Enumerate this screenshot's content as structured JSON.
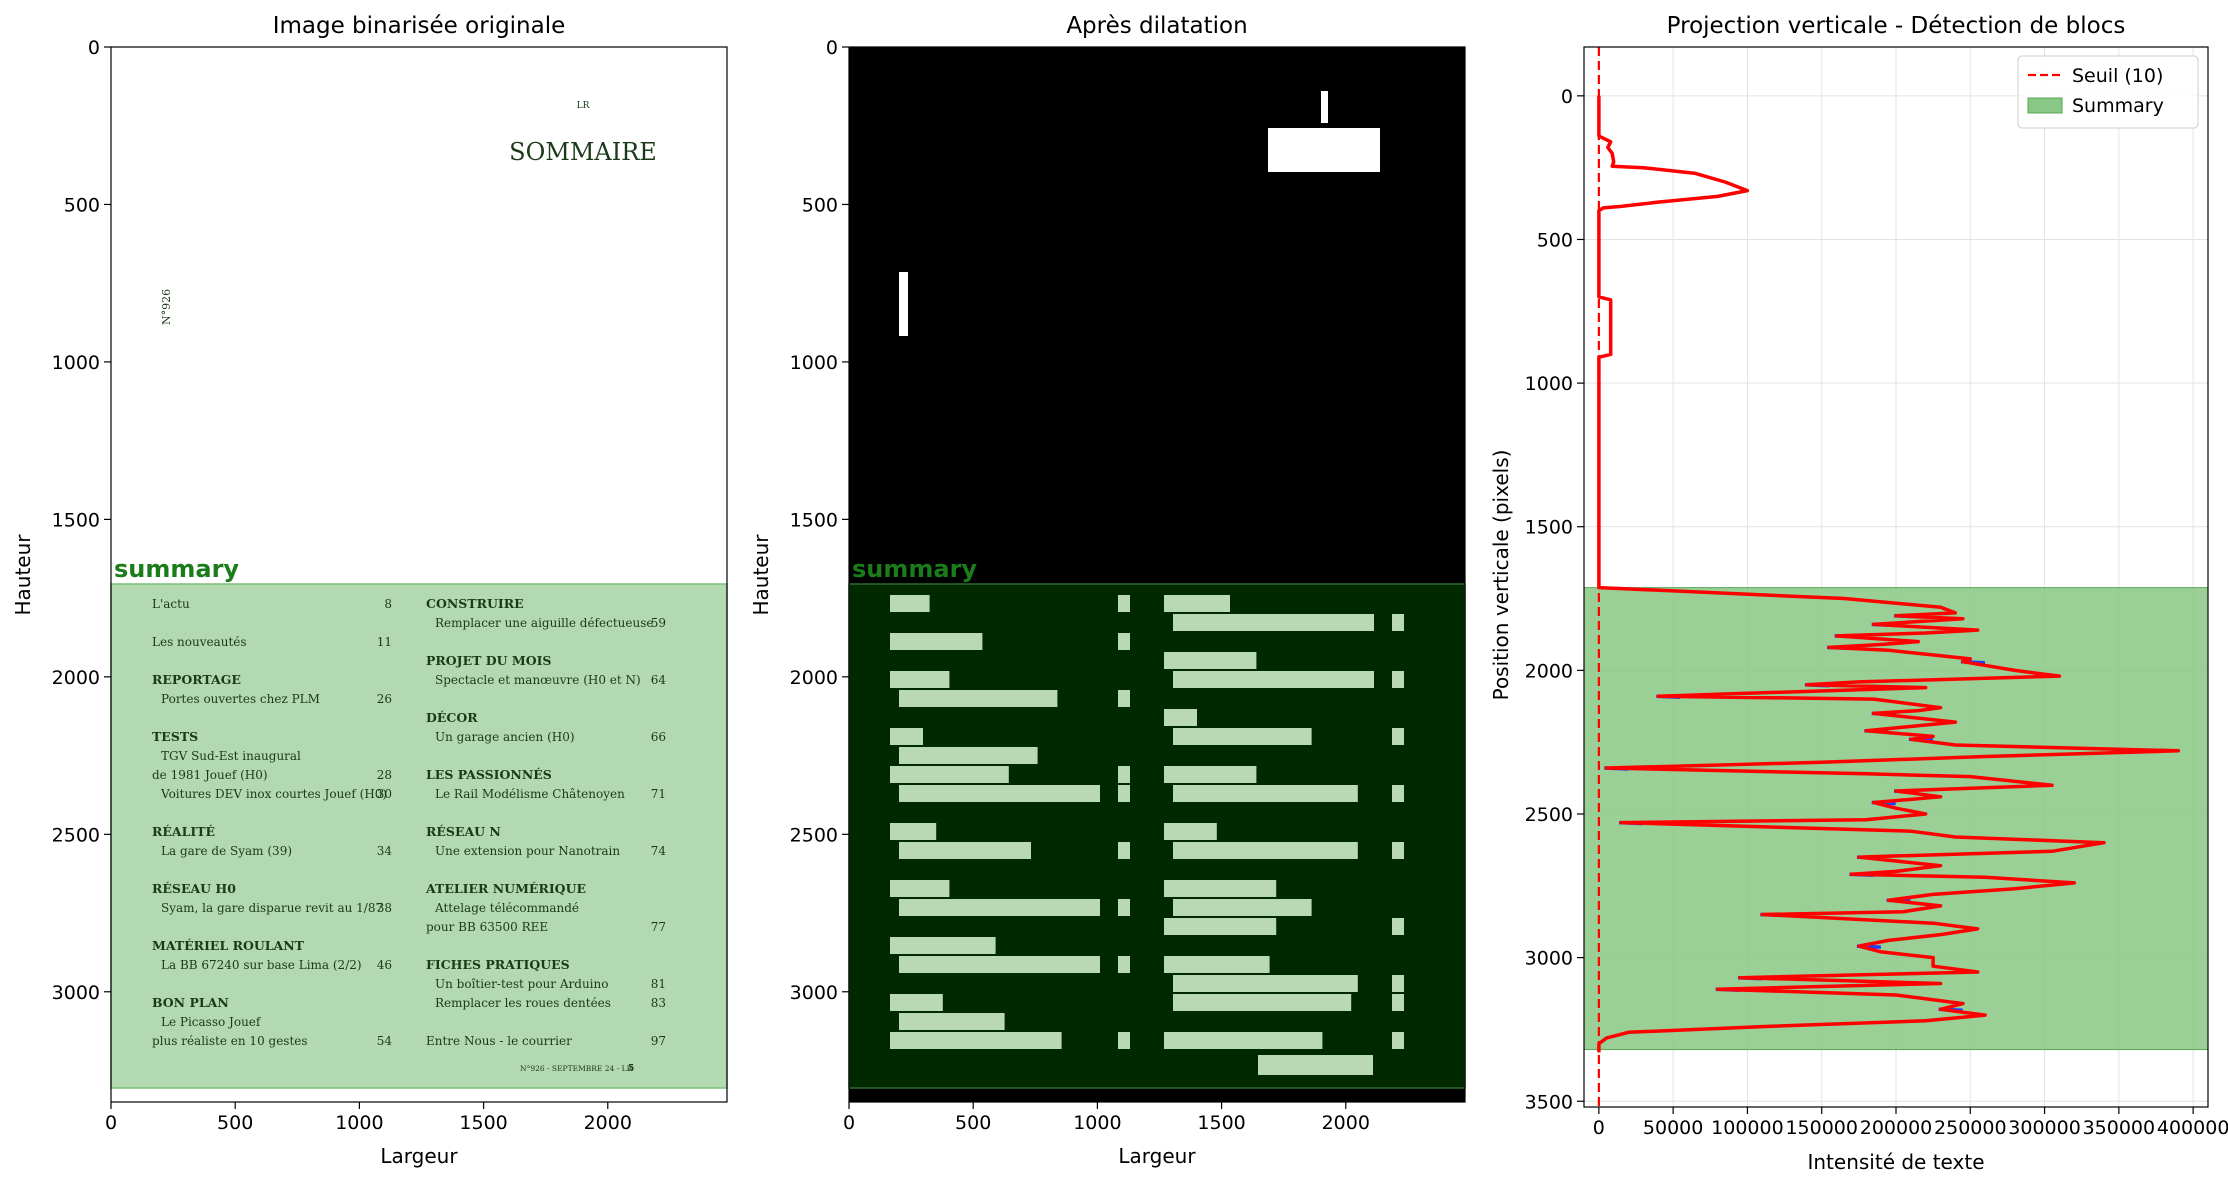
{
  "panels": [
    {
      "title": "Image binarisée originale",
      "xlabel": "Largeur",
      "ylabel": "Hauteur",
      "xticks": [
        "0",
        "500",
        "1000",
        "1500",
        "2000"
      ],
      "yticks": [
        "0",
        "500",
        "1000",
        "1500",
        "2000",
        "2500",
        "3000"
      ],
      "region_label": "summary",
      "page_text": {
        "header_small": "LR",
        "header": "SOMMAIRE",
        "issue_vertical": "N°926",
        "footer": "N°926 - SEPTEMBRE 24 - LR",
        "footer_page": "5",
        "left_col": [
          {
            "text": "L'actu",
            "num": "8",
            "bold": false,
            "indent": false
          },
          {
            "text": "Les nouveautés",
            "num": "11",
            "bold": false,
            "indent": false
          },
          {
            "text": "REPORTAGE",
            "num": "",
            "bold": true,
            "indent": false
          },
          {
            "text": "Portes ouvertes chez PLM",
            "num": "26",
            "bold": false,
            "indent": true
          },
          {
            "text": "TESTS",
            "num": "",
            "bold": true,
            "indent": false
          },
          {
            "text": "TGV Sud-Est inaugural",
            "num": "",
            "bold": false,
            "indent": true
          },
          {
            "text": "de 1981 Jouef (H0)",
            "num": "28",
            "bold": false,
            "indent": false
          },
          {
            "text": "Voitures DEV inox courtes Jouef (H0)",
            "num": "30",
            "bold": false,
            "indent": true
          },
          {
            "text": "RÉALITÉ",
            "num": "",
            "bold": true,
            "indent": false
          },
          {
            "text": "La gare de Syam (39)",
            "num": "34",
            "bold": false,
            "indent": true
          },
          {
            "text": "RÉSEAU H0",
            "num": "",
            "bold": true,
            "indent": false
          },
          {
            "text": "Syam, la gare disparue revit au 1/87",
            "num": "38",
            "bold": false,
            "indent": true
          },
          {
            "text": "MATÉRIEL ROULANT",
            "num": "",
            "bold": true,
            "indent": false
          },
          {
            "text": "La BB 67240 sur base Lima (2/2)",
            "num": "46",
            "bold": false,
            "indent": true
          },
          {
            "text": "BON PLAN",
            "num": "",
            "bold": true,
            "indent": false
          },
          {
            "text": "Le Picasso Jouef",
            "num": "",
            "bold": false,
            "indent": true
          },
          {
            "text": "plus réaliste en 10 gestes",
            "num": "54",
            "bold": false,
            "indent": false
          }
        ],
        "right_col": [
          {
            "text": "CONSTRUIRE",
            "num": "",
            "bold": true,
            "indent": false
          },
          {
            "text": "Remplacer une aiguille défectueuse",
            "num": "59",
            "bold": false,
            "indent": true
          },
          {
            "text": "PROJET DU MOIS",
            "num": "",
            "bold": true,
            "indent": false
          },
          {
            "text": "Spectacle et manœuvre (H0 et N)",
            "num": "64",
            "bold": false,
            "indent": true
          },
          {
            "text": "DÉCOR",
            "num": "",
            "bold": true,
            "indent": false
          },
          {
            "text": "Un garage ancien (H0)",
            "num": "66",
            "bold": false,
            "indent": true
          },
          {
            "text": "LES PASSIONNÉS",
            "num": "",
            "bold": true,
            "indent": false
          },
          {
            "text": "Le Rail Modélisme Châtenoyen",
            "num": "71",
            "bold": false,
            "indent": true
          },
          {
            "text": "RÉSEAU N",
            "num": "",
            "bold": true,
            "indent": false
          },
          {
            "text": "Une extension pour Nanotrain",
            "num": "74",
            "bold": false,
            "indent": true
          },
          {
            "text": "ATELIER NUMÉRIQUE",
            "num": "",
            "bold": true,
            "indent": false
          },
          {
            "text": "Attelage télécommandé",
            "num": "",
            "bold": false,
            "indent": true
          },
          {
            "text": "pour BB 63500 REE",
            "num": "77",
            "bold": false,
            "indent": false
          },
          {
            "text": "FICHES PRATIQUES",
            "num": "",
            "bold": true,
            "indent": false
          },
          {
            "text": "Un boîtier-test pour Arduino",
            "num": "81",
            "bold": false,
            "indent": true
          },
          {
            "text": "Remplacer les roues dentées",
            "num": "83",
            "bold": false,
            "indent": true
          },
          {
            "text": "Entre Nous - le courrier",
            "num": "97",
            "bold": false,
            "indent": false
          }
        ]
      }
    },
    {
      "title": "Après dilatation",
      "xlabel": "Largeur",
      "ylabel": "Hauteur",
      "xticks": [
        "0",
        "500",
        "1000",
        "1500",
        "2000"
      ],
      "yticks": [
        "0",
        "500",
        "1000",
        "1500",
        "2000",
        "2500",
        "3000"
      ],
      "region_label": "summary"
    },
    {
      "title": "Projection verticale - Détection de blocs",
      "xlabel": "Intensité de texte",
      "ylabel": "Position verticale (pixels)",
      "xticks": [
        "0",
        "50000",
        "100000",
        "150000",
        "200000",
        "250000",
        "300000",
        "350000",
        "400000"
      ],
      "yticks": [
        "0",
        "500",
        "1000",
        "1500",
        "2000",
        "2500",
        "3000",
        "3500"
      ],
      "legend": [
        "Seuil (10)",
        "Summary"
      ]
    }
  ],
  "chart_data": {
    "type": "line",
    "title": "Projection verticale - Détection de blocs",
    "xlabel": "Intensité de texte",
    "ylabel": "Position verticale (pixels)",
    "xlim": [
      -10000,
      410000
    ],
    "ylim": [
      3520,
      -170
    ],
    "threshold": {
      "name": "Seuil (10)",
      "value": 10,
      "color": "#ff0000"
    },
    "summary_block": {
      "name": "Summary",
      "y_range": [
        1712,
        3320
      ],
      "color": "#88c784"
    },
    "image": {
      "width": 2480,
      "height": 3300,
      "summary_y_range": [
        1712,
        3320
      ]
    },
    "profile": {
      "y": [
        0,
        140,
        160,
        180,
        200,
        230,
        245,
        250,
        270,
        300,
        330,
        350,
        370,
        385,
        390,
        400,
        700,
        710,
        720,
        900,
        910,
        1700,
        1712,
        1750,
        1780,
        1800,
        1810,
        1820,
        1840,
        1860,
        1870,
        1880,
        1900,
        1910,
        1920,
        1930,
        1960,
        1970,
        2000,
        2020,
        2040,
        2050,
        2060,
        2080,
        2090,
        2100,
        2130,
        2140,
        2150,
        2180,
        2210,
        2230,
        2240,
        2260,
        2280,
        2300,
        2320,
        2340,
        2360,
        2370,
        2400,
        2420,
        2440,
        2460,
        2480,
        2500,
        2520,
        2530,
        2560,
        2580,
        2600,
        2630,
        2650,
        2680,
        2700,
        2710,
        2720,
        2740,
        2760,
        2780,
        2800,
        2820,
        2840,
        2850,
        2880,
        2900,
        2920,
        2940,
        2960,
        2980,
        3000,
        3030,
        3050,
        3070,
        3090,
        3110,
        3130,
        3160,
        3180,
        3200,
        3220,
        3240,
        3260,
        3280,
        3300,
        3320,
        3330
      ],
      "x": [
        0,
        0,
        8000,
        6000,
        9000,
        10000,
        9000,
        30000,
        65000,
        85000,
        100000,
        80000,
        40000,
        15000,
        3000,
        0,
        0,
        8000,
        8000,
        8000,
        0,
        0,
        0,
        165000,
        230000,
        240000,
        200000,
        245000,
        185000,
        255000,
        220000,
        160000,
        215000,
        190000,
        155000,
        195000,
        250000,
        245000,
        280000,
        310000,
        175000,
        140000,
        220000,
        100000,
        40000,
        185000,
        230000,
        215000,
        185000,
        240000,
        180000,
        225000,
        210000,
        240000,
        390000,
        260000,
        150000,
        5000,
        180000,
        250000,
        305000,
        200000,
        230000,
        185000,
        200000,
        220000,
        180000,
        15000,
        210000,
        240000,
        340000,
        305000,
        175000,
        230000,
        200000,
        170000,
        260000,
        320000,
        280000,
        225000,
        195000,
        230000,
        205000,
        110000,
        225000,
        255000,
        230000,
        195000,
        175000,
        190000,
        225000,
        225000,
        255000,
        95000,
        230000,
        80000,
        200000,
        245000,
        230000,
        260000,
        220000,
        110000,
        20000,
        5000,
        0,
        0,
        0
      ]
    }
  }
}
